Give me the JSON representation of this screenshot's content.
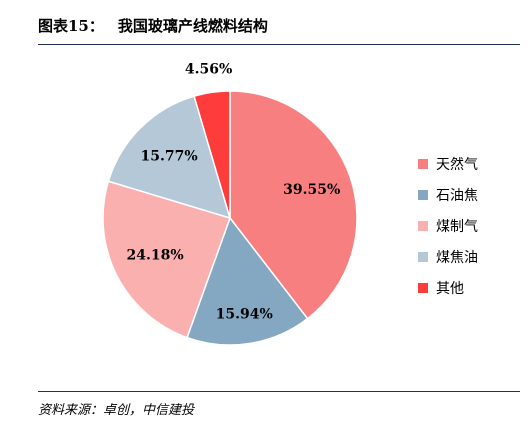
{
  "header": {
    "figure_num": "图表15：",
    "title": "我国玻璃产线燃料结构"
  },
  "source": "资料来源：卓创，中信建投",
  "chart_data": {
    "type": "pie",
    "title": "我国玻璃产线燃料结构",
    "unit": "%",
    "slices": [
      {
        "name": "天然气",
        "value": 39.55,
        "label": "39.55%",
        "color": "#f87f80"
      },
      {
        "name": "石油焦",
        "value": 15.94,
        "label": "15.94%",
        "color": "#85a8c2"
      },
      {
        "name": "煤制气",
        "value": 24.18,
        "label": "24.18%",
        "color": "#fbb0b0"
      },
      {
        "name": "煤焦油",
        "value": 15.77,
        "label": "15.77%",
        "color": "#b4c8d8"
      },
      {
        "name": "其他",
        "value": 4.56,
        "label": "4.56%",
        "color": "#fe3c3b"
      }
    ],
    "legend_position": "right"
  }
}
